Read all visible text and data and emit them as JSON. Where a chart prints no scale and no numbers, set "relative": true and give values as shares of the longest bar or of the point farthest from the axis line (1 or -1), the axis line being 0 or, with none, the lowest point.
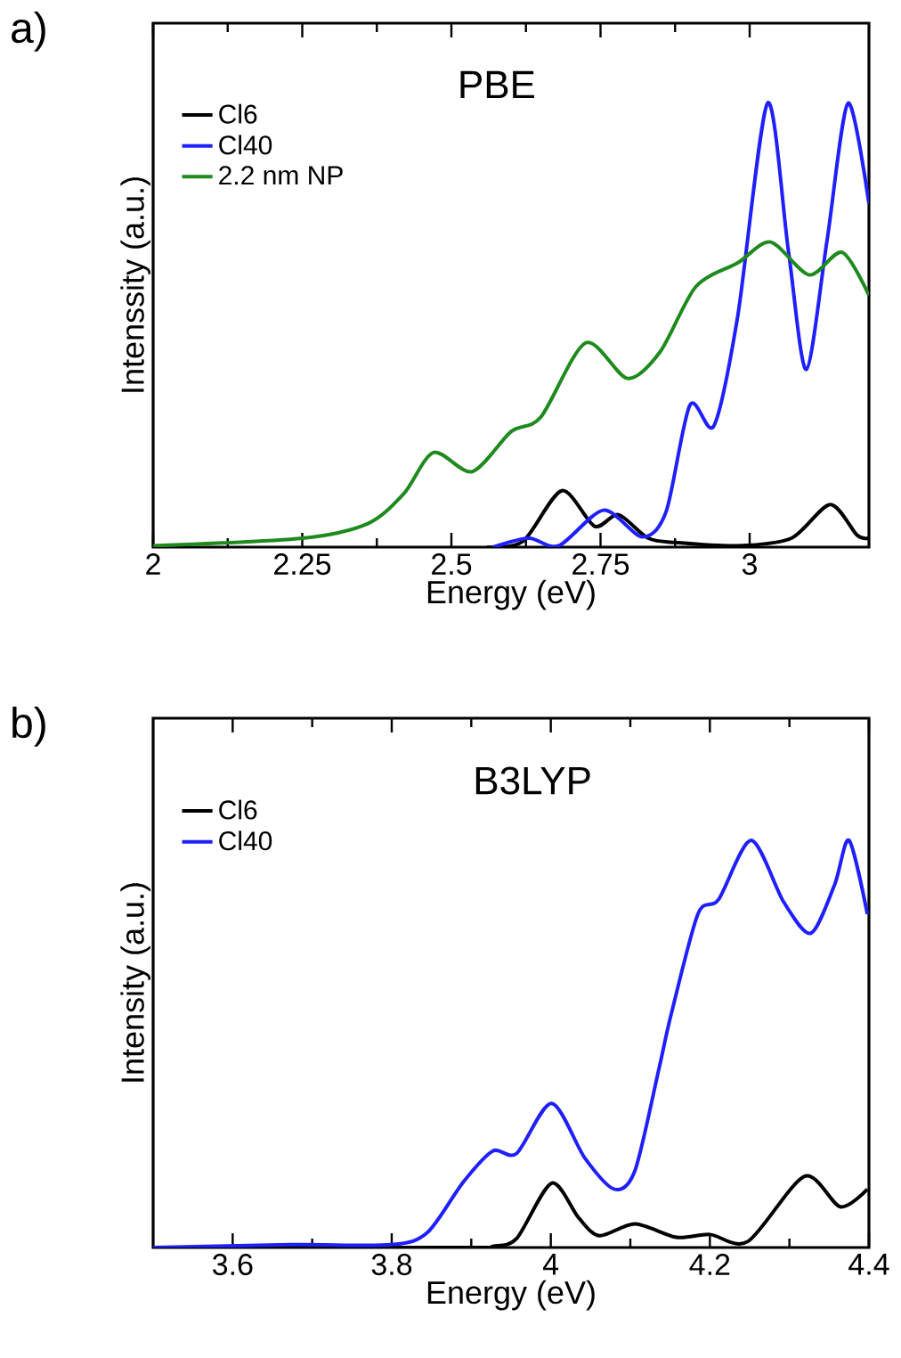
{
  "chart_data": [
    {
      "type": "line",
      "title": "PBE",
      "xlabel": "Energy (eV)",
      "ylabel": "Intenssity (a.u.)",
      "annotations": [
        "a)"
      ],
      "relative": true,
      "legend": "top left",
      "xlim": [
        2,
        3.2
      ],
      "xticks": [
        2,
        2.25,
        2.5,
        2.75,
        3
      ],
      "series": [
        {
          "name": "Cl6",
          "color": "#000000",
          "x": [
            2.56,
            2.62,
            2.685,
            2.74,
            2.78,
            2.83,
            2.88,
            2.98,
            3.07,
            3.135,
            3.18,
            3.2
          ],
          "values": [
            0,
            0.013,
            0.127,
            0.047,
            0.073,
            0.02,
            0.01,
            0.003,
            0.02,
            0.096,
            0.027,
            0.02
          ]
        },
        {
          "name": "Cl40",
          "color": "#1f1fff",
          "x": [
            2.57,
            2.63,
            2.68,
            2.755,
            2.82,
            2.86,
            2.9,
            2.94,
            2.98,
            3.03,
            3.065,
            3.095,
            3.13,
            3.165,
            3.2
          ],
          "values": [
            0,
            0.02,
            0.003,
            0.083,
            0.023,
            0.08,
            0.32,
            0.273,
            0.52,
            1.0,
            0.667,
            0.4,
            0.693,
            1.0,
            0.773
          ]
        },
        {
          "name": "2.2 nm NP",
          "color": "#1e8a1e",
          "x": [
            2.0,
            2.25,
            2.36,
            2.42,
            2.47,
            2.535,
            2.6,
            2.65,
            2.725,
            2.795,
            2.85,
            2.91,
            2.98,
            3.035,
            3.1,
            3.155,
            3.2
          ],
          "values": [
            0.003,
            0.02,
            0.053,
            0.12,
            0.213,
            0.17,
            0.26,
            0.293,
            0.46,
            0.38,
            0.44,
            0.587,
            0.64,
            0.687,
            0.613,
            0.664,
            0.567
          ]
        }
      ]
    },
    {
      "type": "line",
      "title": "B3LYP",
      "xlabel": "Energy (eV)",
      "ylabel": "Intensity (a.u.)",
      "annotations": [
        "b)"
      ],
      "relative": true,
      "legend": "top left",
      "xlim": [
        3.5,
        4.4
      ],
      "xticks": [
        3.6,
        3.8,
        4,
        4.2,
        4.4
      ],
      "series": [
        {
          "name": "Cl6",
          "color": "#000000",
          "x": [
            3.5,
            3.9,
            3.927,
            3.957,
            4.001,
            4.035,
            4.061,
            4.106,
            4.158,
            4.2,
            4.248,
            4.319,
            4.364,
            4.398
          ],
          "values": [
            0,
            0,
            0.003,
            0.022,
            0.158,
            0.073,
            0.029,
            0.058,
            0.025,
            0.032,
            0.015,
            0.175,
            0.1,
            0.143
          ]
        },
        {
          "name": "Cl40",
          "color": "#1f1fff",
          "x": [
            3.5,
            3.673,
            3.8,
            3.845,
            3.89,
            3.927,
            3.957,
            4.001,
            4.043,
            4.08,
            4.106,
            4.136,
            4.151,
            4.185,
            4.211,
            4.252,
            4.293,
            4.327,
            4.357,
            4.375,
            4.398
          ],
          "values": [
            0,
            0.007,
            0.007,
            0.037,
            0.161,
            0.237,
            0.231,
            0.354,
            0.219,
            0.143,
            0.19,
            0.439,
            0.57,
            0.819,
            0.855,
            1.0,
            0.848,
            0.772,
            0.892,
            1.0,
            0.819
          ]
        }
      ]
    }
  ]
}
